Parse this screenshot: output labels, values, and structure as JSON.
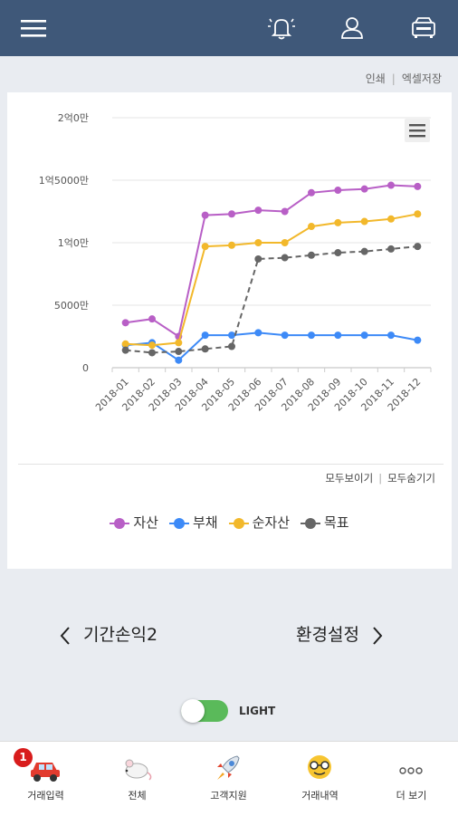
{
  "header": {
    "menu_icon": "hamburger-icon",
    "bell_icon": "bell-icon",
    "user_icon": "user-icon",
    "bank_icon": "bank-icon"
  },
  "links": {
    "print": "인쇄",
    "excel": "엑셀저장"
  },
  "chart_data": {
    "type": "line",
    "categories": [
      "2018-01",
      "2018-02",
      "2018-03",
      "2018-04",
      "2018-05",
      "2018-06",
      "2018-07",
      "2018-08",
      "2018-09",
      "2018-10",
      "2018-11",
      "2018-12"
    ],
    "y_ticks": [
      {
        "value": 0,
        "label": "0"
      },
      {
        "value": 5000,
        "label": "5000만"
      },
      {
        "value": 10000,
        "label": "1억0만"
      },
      {
        "value": 15000,
        "label": "1억5000만"
      },
      {
        "value": 20000,
        "label": "2억0만"
      }
    ],
    "ylim": [
      0,
      20000
    ],
    "grid": true,
    "legend_position": "bottom",
    "series": [
      {
        "name": "자산",
        "color": "#b85fc6",
        "dashed": false,
        "values": [
          3600,
          3900,
          2500,
          12200,
          12300,
          12600,
          12500,
          14000,
          14200,
          14300,
          14600,
          14500
        ]
      },
      {
        "name": "부채",
        "color": "#3d8af7",
        "dashed": false,
        "values": [
          1800,
          2000,
          600,
          2600,
          2600,
          2800,
          2600,
          2600,
          2600,
          2600,
          2600,
          2200
        ]
      },
      {
        "name": "순자산",
        "color": "#f2b82b",
        "dashed": false,
        "values": [
          1900,
          1800,
          2000,
          9700,
          9800,
          10000,
          10000,
          11300,
          11600,
          11700,
          11900,
          12300
        ]
      },
      {
        "name": "목표",
        "color": "#666666",
        "dashed": true,
        "values": [
          1400,
          1200,
          1300,
          1500,
          1700,
          8700,
          8800,
          9000,
          9200,
          9300,
          9500,
          9700
        ]
      }
    ]
  },
  "chart_controls": {
    "show_all": "모두보이기",
    "hide_all": "모두숨기기"
  },
  "nav": {
    "prev_label": "기간손익2",
    "next_label": "환경설정"
  },
  "theme_toggle": {
    "label": "LIGHT"
  },
  "bottom_nav": [
    {
      "label": "거래입력",
      "icon": "car-icon",
      "badge": "1"
    },
    {
      "label": "전체",
      "icon": "mouse-icon"
    },
    {
      "label": "고객지원",
      "icon": "rocket-icon"
    },
    {
      "label": "거래내역",
      "icon": "nerd-face-icon"
    },
    {
      "label": "더 보기",
      "icon": "more-dots-icon"
    }
  ]
}
